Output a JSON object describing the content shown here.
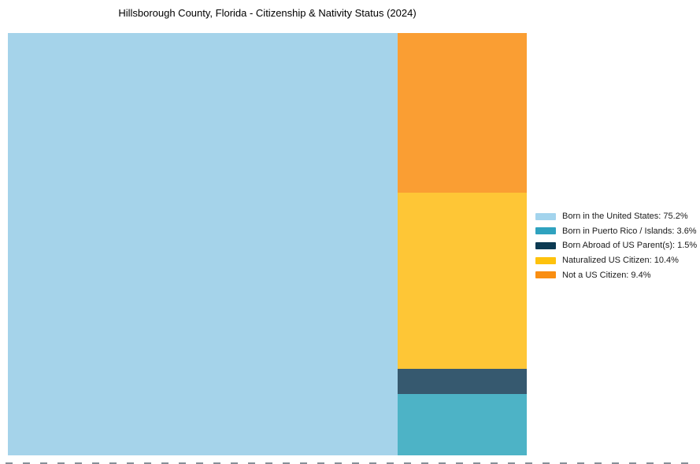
{
  "chart_data": {
    "type": "treemap",
    "title": "Hillsborough County, Florida - Citizenship & Nativity Status (2024)",
    "grid": false,
    "legend_position": "right",
    "segments": [
      {
        "id": "born_us",
        "label": "Born in the United States",
        "value": 75.2,
        "legend_label": "Born in the United States: 75.2%",
        "tile_color": "#A5D3EA",
        "swatch_color": "#A3D4ED"
      },
      {
        "id": "born_pr",
        "label": "Born in Puerto Rico / Islands",
        "value": 3.6,
        "legend_label": "Born in Puerto Rico / Islands: 3.6%",
        "tile_color": "#4DB3C6",
        "swatch_color": "#2FA2BF"
      },
      {
        "id": "born_abroad",
        "label": "Born Abroad of US Parent(s)",
        "value": 1.5,
        "legend_label": "Born Abroad of US Parent(s): 1.5%",
        "tile_color": "#36596F",
        "swatch_color": "#0C3A52"
      },
      {
        "id": "naturalized",
        "label": "Naturalized US Citizen",
        "value": 10.4,
        "legend_label": "Naturalized US Citizen: 10.4%",
        "tile_color": "#FEC636",
        "swatch_color": "#FEC20D"
      },
      {
        "id": "not_citizen",
        "label": "Not a US Citizen",
        "value": 9.4,
        "legend_label": "Not a US Citizen: 9.4%",
        "tile_color": "#FA9E33",
        "swatch_color": "#F98E12"
      }
    ],
    "layout": {
      "left_tile": "born_us",
      "right_column_top_to_bottom": [
        "not_citizen",
        "naturalized",
        "born_abroad",
        "born_pr"
      ]
    }
  }
}
